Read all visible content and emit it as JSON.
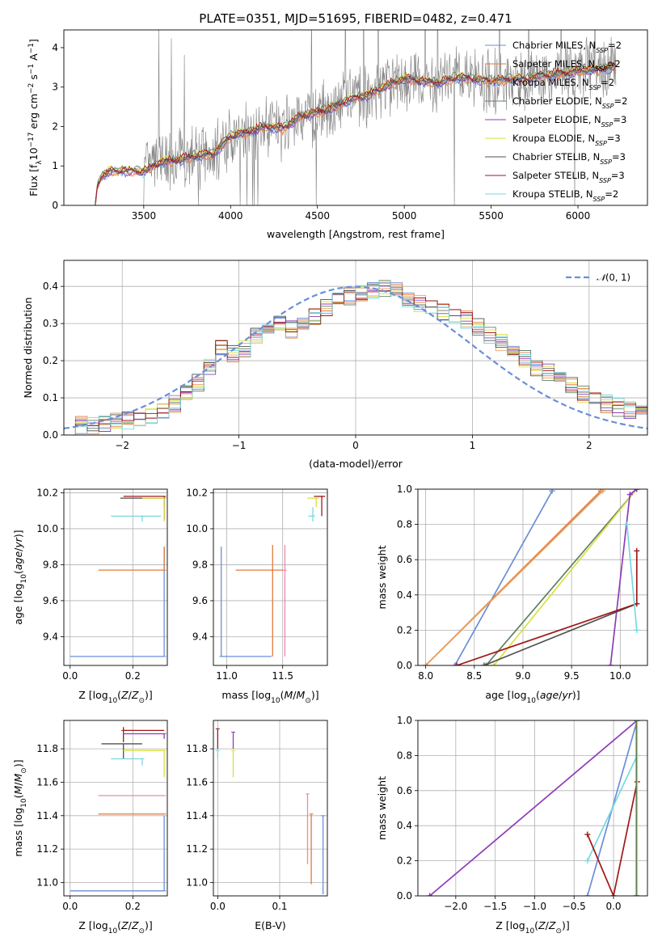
{
  "figure_title": "PLATE=0351, MJD=51695, FIBERID=0482, z=0.471",
  "colors": {
    "Chabrier MILES": "#6a8fd8",
    "Salpeter MILES": "#e07a3a",
    "Kroupa MILES": "#e8a060",
    "Chabrier ELODIE": "#5f8060",
    "Salpeter ELODIE": "#8e3cb8",
    "Kroupa ELODIE": "#d8e040",
    "Chabrier STELIB": "#505050",
    "Salpeter STELIB": "#a01818",
    "Kroupa STELIB": "#78d8e0",
    "data": "#808080",
    "extra": "#e88ab0"
  },
  "chart_data": [
    {
      "id": "spectrum",
      "type": "line",
      "xlabel": "wavelength [Angstrom, rest frame]",
      "ylabel": "Flux [f_λ 10^-17 erg cm^-2 s^-1 A^-1]",
      "xlim": [
        3040,
        6400
      ],
      "ylim": [
        0,
        4.45
      ],
      "xticks": [
        3500,
        4000,
        4500,
        5000,
        5500,
        6000
      ],
      "yticks": [
        0,
        1,
        2,
        3,
        4
      ],
      "legend_position": "upper right",
      "legend": [
        {
          "label": "Chabrier MILES, N",
          "sub": "SSP",
          "tail": "=2",
          "color": "Chabrier MILES"
        },
        {
          "label": "Salpeter MILES, N",
          "sub": "SSP",
          "tail": "=2",
          "color": "Salpeter MILES"
        },
        {
          "label": "Kroupa MILES, N",
          "sub": "SSP",
          "tail": "=2",
          "color": "Kroupa MILES"
        },
        {
          "label": "Chabrier ELODIE, N",
          "sub": "SSP",
          "tail": "=2",
          "color": "Chabrier ELODIE"
        },
        {
          "label": "Salpeter ELODIE, N",
          "sub": "SSP",
          "tail": "=3",
          "color": "Salpeter ELODIE"
        },
        {
          "label": "Kroupa ELODIE, N",
          "sub": "SSP",
          "tail": "=3",
          "color": "Kroupa ELODIE"
        },
        {
          "label": "Chabrier STELIB, N",
          "sub": "SSP",
          "tail": "=3",
          "color": "Chabrier STELIB"
        },
        {
          "label": "Salpeter STELIB, N",
          "sub": "SSP",
          "tail": "=3",
          "color": "Salpeter STELIB"
        },
        {
          "label": "Kroupa STELIB, N",
          "sub": "SSP",
          "tail": "=2",
          "color": "Kroupa STELIB"
        }
      ],
      "model_continuum": [
        [
          3220,
          0
        ],
        [
          3230,
          0.45
        ],
        [
          3260,
          0.75
        ],
        [
          3300,
          0.85
        ],
        [
          3400,
          0.88
        ],
        [
          3500,
          0.85
        ],
        [
          3600,
          1.1
        ],
        [
          3700,
          1.15
        ],
        [
          3800,
          1.25
        ],
        [
          3900,
          1.3
        ],
        [
          4000,
          1.75
        ],
        [
          4100,
          1.85
        ],
        [
          4200,
          2.0
        ],
        [
          4300,
          1.95
        ],
        [
          4400,
          2.25
        ],
        [
          4500,
          2.35
        ],
        [
          4600,
          2.5
        ],
        [
          4700,
          2.7
        ],
        [
          4800,
          2.8
        ],
        [
          4900,
          3.05
        ],
        [
          5000,
          3.2
        ],
        [
          5100,
          3.15
        ],
        [
          5200,
          3.1
        ],
        [
          5300,
          3.25
        ],
        [
          5400,
          3.2
        ],
        [
          5500,
          3.15
        ],
        [
          5600,
          3.2
        ],
        [
          5700,
          3.2
        ],
        [
          5800,
          3.3
        ],
        [
          5900,
          3.35
        ],
        [
          6000,
          3.4
        ],
        [
          6100,
          3.45
        ],
        [
          6200,
          3.5
        ]
      ],
      "data_noise_amplitude": 0.75
    },
    {
      "id": "residuals",
      "type": "line",
      "xlabel": "(data-model)/error",
      "ylabel": "Normed distribution",
      "xlim": [
        -2.5,
        2.5
      ],
      "ylim": [
        0,
        0.47
      ],
      "xticks": [
        -2,
        -1,
        0,
        1,
        2
      ],
      "yticks": [
        0.0,
        0.1,
        0.2,
        0.3,
        0.4
      ],
      "legend": [
        {
          "label": "N(0,1)",
          "style": "dashed",
          "color": "Chabrier MILES"
        }
      ],
      "legend_position": "upper right",
      "hist_bin_width": 0.1,
      "hist_profile": [
        [
          -2.5,
          0.02
        ],
        [
          -2.2,
          0.03
        ],
        [
          -1.9,
          0.04
        ],
        [
          -1.7,
          0.06
        ],
        [
          -1.5,
          0.09
        ],
        [
          -1.3,
          0.16
        ],
        [
          -1.15,
          0.24
        ],
        [
          -1.0,
          0.21
        ],
        [
          -0.9,
          0.25
        ],
        [
          -0.7,
          0.3
        ],
        [
          -0.5,
          0.28
        ],
        [
          -0.3,
          0.33
        ],
        [
          -0.1,
          0.37
        ],
        [
          0.1,
          0.39
        ],
        [
          0.3,
          0.4
        ],
        [
          0.5,
          0.36
        ],
        [
          0.7,
          0.33
        ],
        [
          0.9,
          0.32
        ],
        [
          1.1,
          0.28
        ],
        [
          1.3,
          0.24
        ],
        [
          1.5,
          0.19
        ],
        [
          1.7,
          0.16
        ],
        [
          1.9,
          0.12
        ],
        [
          2.1,
          0.09
        ],
        [
          2.3,
          0.07
        ],
        [
          2.5,
          0.05
        ]
      ]
    },
    {
      "id": "age_vs_Z",
      "type": "scatter",
      "xlabel": "Z [log10(Z/Z⊙)]",
      "ylabel": "age [log10(age/yr)]",
      "xlim": [
        -0.02,
        0.31
      ],
      "ylim": [
        9.24,
        10.22
      ],
      "xticks": [
        0.0,
        0.2
      ],
      "yticks": [
        9.4,
        9.6,
        9.8,
        10.0,
        10.2
      ],
      "points": [
        {
          "series": "Chabrier MILES",
          "x": 0.3,
          "y": 9.29,
          "xerr": [
            0.3,
            0
          ],
          "yerr": [
            0,
            0.61
          ]
        },
        {
          "series": "Salpeter MILES",
          "x": 0.3,
          "y": 9.77,
          "xerr": [
            0.21,
            0
          ],
          "yerr": [
            0,
            0.13
          ]
        },
        {
          "series": "Salpeter STELIB",
          "x": 0.3,
          "y": 10.18,
          "xerr": [
            0.13,
            0
          ],
          "yerr": [
            0.13,
            0
          ]
        },
        {
          "series": "Chabrier STELIB",
          "x": 0.3,
          "y": 10.17,
          "xerr": [
            0.14,
            0
          ],
          "yerr": [
            0.04,
            0
          ]
        },
        {
          "series": "Kroupa STELIB",
          "x": 0.23,
          "y": 10.07,
          "xerr": [
            0.1,
            0.06
          ],
          "yerr": [
            0.03,
            0
          ]
        },
        {
          "series": "Kroupa ELODIE",
          "x": 0.3,
          "y": 10.17,
          "xerr": [
            0.07,
            0
          ],
          "yerr": [
            0.13,
            0
          ]
        }
      ]
    },
    {
      "id": "age_vs_mass",
      "type": "scatter",
      "xlabel": "mass [log10(M/M⊙)]",
      "ylabel": "",
      "xlim": [
        10.88,
        11.9
      ],
      "ylim": [
        9.24,
        10.22
      ],
      "xticks": [
        11.0,
        11.5
      ],
      "yticks": [
        9.4,
        9.6,
        9.8,
        10.0,
        10.2
      ],
      "points": [
        {
          "series": "Chabrier MILES",
          "x": 10.95,
          "y": 9.29,
          "xerr": [
            0,
            0.45
          ],
          "yerr": [
            0,
            0.61
          ]
        },
        {
          "series": "Salpeter MILES",
          "x": 11.41,
          "y": 9.77,
          "xerr": [
            0.33,
            0.1
          ],
          "yerr": [
            0.48,
            0.14
          ]
        },
        {
          "series": "extra",
          "x": 11.52,
          "y": 9.77,
          "xerr": [
            0,
            0
          ],
          "yerr": [
            0.48,
            0.14
          ]
        },
        {
          "series": "Salpeter STELIB",
          "x": 11.85,
          "y": 10.18,
          "xerr": [
            0.07,
            0.03
          ],
          "yerr": [
            0.11,
            0
          ]
        },
        {
          "series": "Kroupa STELIB",
          "x": 11.77,
          "y": 10.07,
          "xerr": [
            0.04,
            0.02
          ],
          "yerr": [
            0.03,
            0.05
          ]
        },
        {
          "series": "Kroupa ELODIE",
          "x": 11.8,
          "y": 10.17,
          "xerr": [
            0.08,
            0.02
          ],
          "yerr": [
            0.05,
            0
          ]
        }
      ]
    },
    {
      "id": "massweight_vs_age",
      "type": "line",
      "xlabel": "age [log10(age/yr)]",
      "ylabel": "mass weight",
      "xlim": [
        7.92,
        10.28
      ],
      "ylim": [
        0,
        1.0
      ],
      "xticks": [
        8.0,
        8.5,
        9.0,
        9.5,
        10.0
      ],
      "yticks": [
        0.0,
        0.2,
        0.4,
        0.6,
        0.8,
        1.0
      ],
      "series": [
        {
          "name": "Chabrier MILES",
          "points": [
            [
              8.3,
              0.0
            ],
            [
              9.3,
              0.99
            ]
          ]
        },
        {
          "name": "Salpeter MILES",
          "points": [
            [
              8.0,
              0.0
            ],
            [
              9.8,
              0.99
            ]
          ]
        },
        {
          "name": "Kroupa MILES",
          "points": [
            [
              8.0,
              0.0
            ],
            [
              9.82,
              0.99
            ]
          ]
        },
        {
          "name": "Chabrier ELODIE",
          "points": [
            [
              8.62,
              0.0
            ],
            [
              10.17,
              1.0
            ]
          ]
        },
        {
          "name": "Kroupa ELODIE",
          "points": [
            [
              8.7,
              0.0
            ],
            [
              10.17,
              1.0
            ]
          ]
        },
        {
          "name": "Salpeter ELODIE",
          "points": [
            [
              9.9,
              0.0
            ],
            [
              10.1,
              0.97
            ],
            [
              10.17,
              1.0
            ]
          ]
        },
        {
          "name": "Chabrier STELIB",
          "points": [
            [
              8.6,
              0.0
            ],
            [
              10.17,
              0.35
            ]
          ]
        },
        {
          "name": "Salpeter STELIB",
          "points": [
            [
              8.32,
              0.0
            ],
            [
              10.17,
              0.35
            ],
            [
              10.17,
              0.65
            ]
          ]
        },
        {
          "name": "Kroupa STELIB",
          "points": [
            [
              10.07,
              0.8
            ],
            [
              10.17,
              0.2
            ]
          ]
        }
      ]
    },
    {
      "id": "mass_vs_Z",
      "type": "scatter",
      "xlabel": "Z [log10(Z/Z⊙)]",
      "ylabel": "mass [log10(M/M⊙)]",
      "xlim": [
        -0.02,
        0.31
      ],
      "ylim": [
        10.92,
        11.97
      ],
      "xticks": [
        0.0,
        0.2
      ],
      "yticks": [
        11.0,
        11.2,
        11.4,
        11.6,
        11.8
      ],
      "points": [
        {
          "series": "Chabrier MILES",
          "x": 0.3,
          "y": 10.95,
          "xerr": [
            0.3,
            0
          ],
          "yerr": [
            0,
            0.45
          ]
        },
        {
          "series": "Salpeter MILES",
          "x": 0.3,
          "y": 11.41,
          "xerr": [
            0.21,
            0
          ],
          "yerr": [
            0,
            0
          ]
        },
        {
          "series": "extra",
          "x": 0.3,
          "y": 11.52,
          "xerr": [
            0.21,
            0
          ],
          "yerr": [
            0,
            0
          ]
        },
        {
          "series": "Salpeter STELIB",
          "x": 0.17,
          "y": 11.91,
          "xerr": [
            0,
            0.13
          ],
          "yerr": [
            0.07,
            0.02
          ]
        },
        {
          "series": "Chabrier STELIB",
          "x": 0.17,
          "y": 11.83,
          "xerr": [
            0.07,
            0.06
          ],
          "yerr": [
            0.09,
            0
          ]
        },
        {
          "series": "Kroupa STELIB",
          "x": 0.23,
          "y": 11.74,
          "xerr": [
            0.1,
            0
          ],
          "yerr": [
            0.04,
            0
          ]
        },
        {
          "series": "Kroupa ELODIE",
          "x": 0.3,
          "y": 11.79,
          "xerr": [
            0.13,
            0
          ],
          "yerr": [
            0.16,
            0
          ]
        },
        {
          "series": "Salpeter ELODIE",
          "x": 0.3,
          "y": 11.89,
          "xerr": [
            0.13,
            0
          ],
          "yerr": [
            0.03,
            0
          ]
        }
      ]
    },
    {
      "id": "mass_vs_EBV",
      "type": "scatter",
      "xlabel": "E(B-V)",
      "ylabel": "",
      "xlim": [
        -0.007,
        0.177
      ],
      "ylim": [
        10.92,
        11.97
      ],
      "xticks": [
        0.0,
        0.1
      ],
      "yticks": [
        11.0,
        11.2,
        11.4,
        11.6,
        11.8
      ],
      "points": [
        {
          "series": "Chabrier MILES",
          "x": 0.17,
          "y": 11.4,
          "yerr": [
            0.47,
            0
          ]
        },
        {
          "series": "Salpeter MILES",
          "x": 0.151,
          "y": 11.41,
          "yerr": [
            0.42,
            0
          ]
        },
        {
          "series": "extra",
          "x": 0.145,
          "y": 11.53,
          "yerr": [
            0.42,
            0
          ]
        },
        {
          "series": "Salpeter STELIB",
          "x": 0.0,
          "y": 11.92,
          "yerr": [
            0.12,
            0
          ]
        },
        {
          "series": "Kroupa STELIB",
          "x": 0.0,
          "y": 11.79,
          "yerr": [
            0.05,
            0
          ]
        },
        {
          "series": "Kroupa ELODIE",
          "x": 0.025,
          "y": 11.79,
          "yerr": [
            0.16,
            0
          ]
        },
        {
          "series": "Salpeter ELODIE",
          "x": 0.025,
          "y": 11.9,
          "yerr": [
            0.1,
            0
          ]
        }
      ]
    },
    {
      "id": "massweight_vs_Z",
      "type": "line",
      "xlabel": "Z [log10(Z/Z⊙)]",
      "ylabel": "mass weight",
      "xlim": [
        -2.48,
        0.43
      ],
      "ylim": [
        0,
        1.0
      ],
      "xticks": [
        -2.0,
        -1.5,
        -1.0,
        -0.5,
        0.0
      ],
      "yticks": [
        0.0,
        0.2,
        0.4,
        0.6,
        0.8,
        1.0
      ],
      "series": [
        {
          "name": "Salpeter ELODIE",
          "points": [
            [
              -2.33,
              0.0
            ],
            [
              0.3,
              1.0
            ]
          ]
        },
        {
          "name": "Chabrier MILES",
          "points": [
            [
              -0.33,
              0.0
            ],
            [
              0.3,
              1.0
            ]
          ]
        },
        {
          "name": "Kroupa STELIB",
          "points": [
            [
              -0.33,
              0.2
            ],
            [
              0.3,
              0.8
            ]
          ]
        },
        {
          "name": "Salpeter STELIB",
          "points": [
            [
              -0.33,
              0.35
            ],
            [
              0.0,
              0.0
            ],
            [
              0.3,
              0.65
            ]
          ]
        },
        {
          "name": "Kroupa ELODIE",
          "points": [
            [
              0.3,
              0.0
            ],
            [
              0.3,
              1.0
            ]
          ]
        },
        {
          "name": "Chabrier ELODIE",
          "points": [
            [
              0.29,
              0.0
            ],
            [
              0.29,
              1.0
            ]
          ]
        }
      ]
    }
  ]
}
